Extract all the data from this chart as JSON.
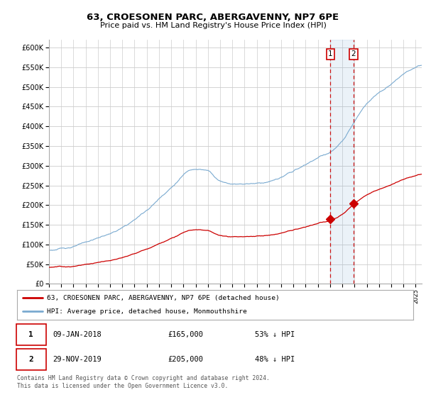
{
  "title": "63, CROESONEN PARC, ABERGAVENNY, NP7 6PE",
  "subtitle": "Price paid vs. HM Land Registry's House Price Index (HPI)",
  "legend_label_red": "63, CROESONEN PARC, ABERGAVENNY, NP7 6PE (detached house)",
  "legend_label_blue": "HPI: Average price, detached house, Monmouthshire",
  "annotation1_label": "1",
  "annotation1_date": "09-JAN-2018",
  "annotation1_price": "£165,000",
  "annotation1_hpi": "53% ↓ HPI",
  "annotation2_label": "2",
  "annotation2_date": "29-NOV-2019",
  "annotation2_price": "£205,000",
  "annotation2_hpi": "48% ↓ HPI",
  "footer": "Contains HM Land Registry data © Crown copyright and database right 2024.\nThis data is licensed under the Open Government Licence v3.0.",
  "sale1_x": 2018.03,
  "sale1_y": 165000,
  "sale2_x": 2019.92,
  "sale2_y": 205000,
  "vline1_x": 2018.03,
  "vline2_x": 2019.92,
  "ylim": [
    0,
    620000
  ],
  "xlim": [
    1995.0,
    2025.5
  ],
  "red_color": "#cc0000",
  "blue_color": "#7aaad0",
  "vline_color": "#cc0000",
  "background_color": "#ffffff",
  "grid_color": "#cccccc",
  "annotation_box_color": "#cc0000"
}
